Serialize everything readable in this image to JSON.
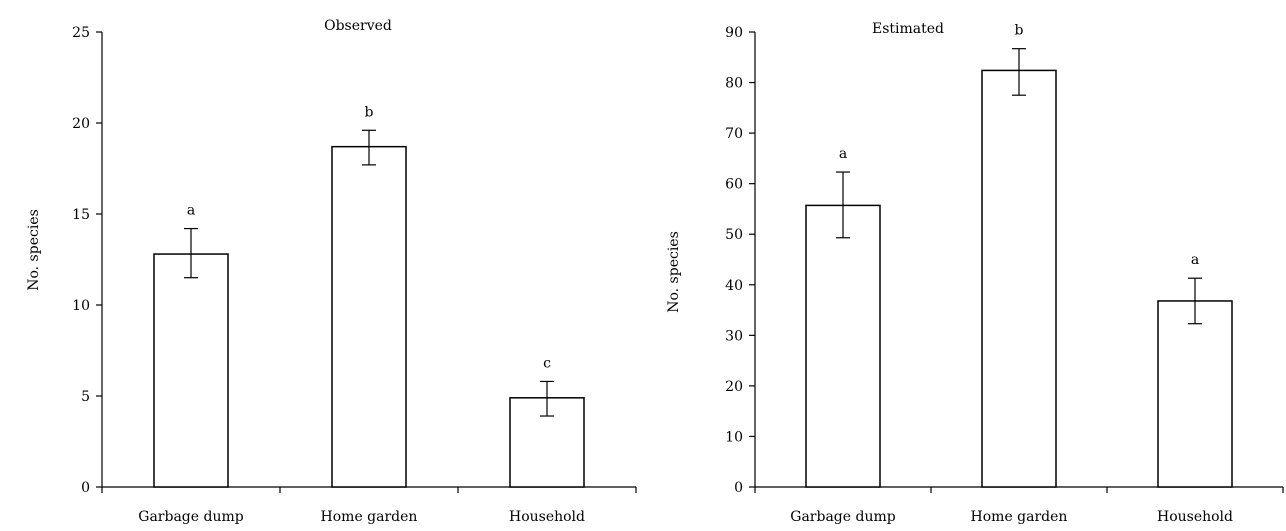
{
  "chart_data": [
    {
      "type": "bar",
      "title": "Observed",
      "xlabel": "",
      "ylabel": "No. species",
      "ylim": [
        0,
        25
      ],
      "yticks": [
        0,
        5,
        10,
        15,
        20,
        25
      ],
      "categories": [
        "Garbage dump",
        "Home garden",
        "Household"
      ],
      "values": [
        12.8,
        18.7,
        4.9
      ],
      "error_low": [
        11.5,
        17.7,
        3.9
      ],
      "error_high": [
        14.2,
        19.6,
        5.8
      ],
      "significance_letters": [
        "a",
        "b",
        "c"
      ],
      "grid": false,
      "legend": "none"
    },
    {
      "type": "bar",
      "title": "Estimated",
      "xlabel": "",
      "ylabel": "No. species",
      "ylim": [
        0,
        90
      ],
      "yticks": [
        0,
        10,
        20,
        30,
        40,
        50,
        60,
        70,
        80,
        90
      ],
      "categories": [
        "Garbage dump",
        "Home garden",
        "Household"
      ],
      "values": [
        55.7,
        82.4,
        36.8
      ],
      "error_low": [
        49.3,
        77.5,
        32.3
      ],
      "error_high": [
        62.3,
        86.7,
        41.3
      ],
      "significance_letters": [
        "a",
        "b",
        "a"
      ],
      "grid": false,
      "legend": "none"
    }
  ]
}
